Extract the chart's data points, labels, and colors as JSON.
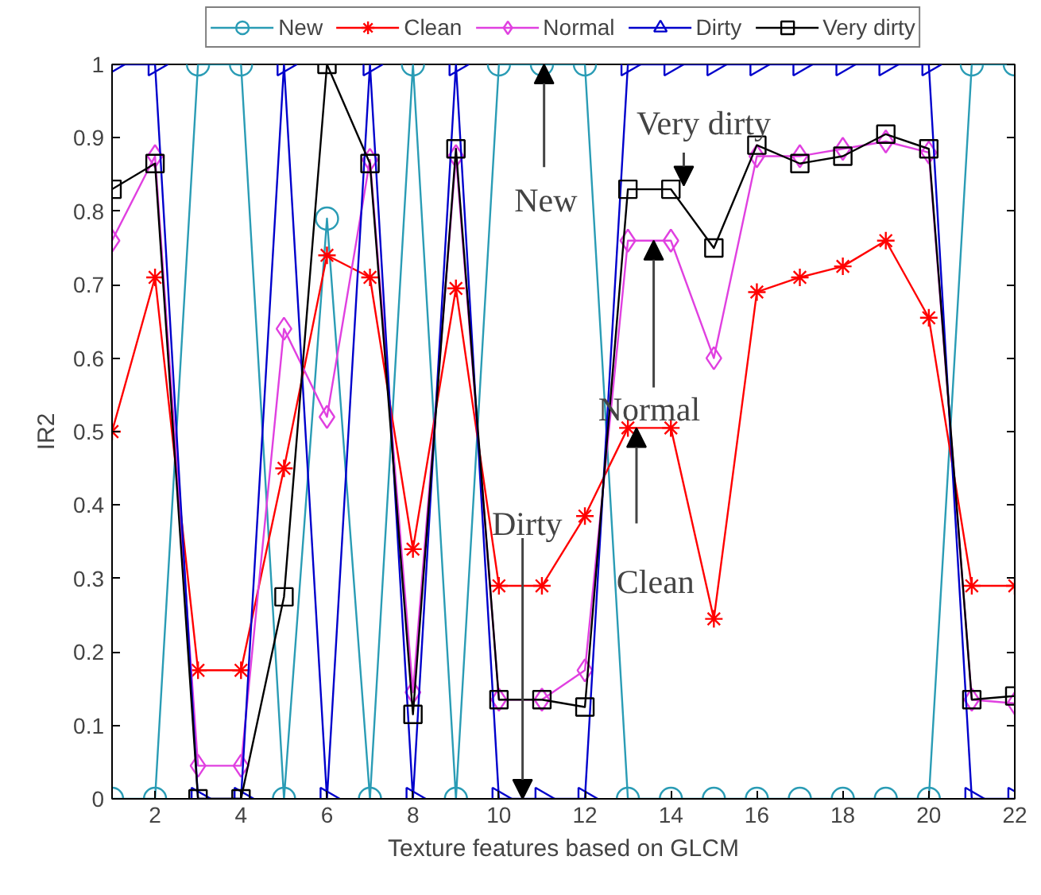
{
  "chart_data": {
    "type": "line",
    "xlabel": "Texture features based on GLCM",
    "ylabel": "IR2",
    "x": [
      1,
      2,
      3,
      4,
      5,
      6,
      7,
      8,
      9,
      10,
      11,
      12,
      13,
      14,
      15,
      16,
      17,
      18,
      19,
      20,
      21,
      22
    ],
    "xlim": [
      1,
      22
    ],
    "xticks": [
      2,
      4,
      6,
      8,
      10,
      12,
      14,
      16,
      18,
      20,
      22
    ],
    "ylim": [
      0,
      1
    ],
    "yticks": [
      0,
      0.1,
      0.2,
      0.3,
      0.4,
      0.5,
      0.6,
      0.7,
      0.8,
      0.9,
      1
    ],
    "grid": false,
    "legend": "top",
    "series": [
      {
        "name": "New",
        "color": "#2a9cb5",
        "marker": "circle",
        "values": [
          0,
          0,
          1,
          1,
          0,
          0.79,
          0,
          1,
          0,
          1,
          1,
          1,
          0,
          0,
          0,
          0,
          0,
          0,
          0,
          0,
          1,
          1
        ]
      },
      {
        "name": "Clean",
        "color": "#ff0000",
        "marker": "cross",
        "values": [
          0.5,
          0.71,
          0.175,
          0.175,
          0.45,
          0.74,
          0.71,
          0.34,
          0.695,
          0.29,
          0.29,
          0.385,
          0.505,
          0.505,
          0.245,
          0.69,
          0.71,
          0.725,
          0.76,
          0.655,
          0.29,
          0.29
        ]
      },
      {
        "name": "Normal",
        "color": "#e040e0",
        "marker": "diamond",
        "values": [
          0.76,
          0.875,
          0.045,
          0.045,
          0.64,
          0.52,
          0.87,
          0.145,
          0.875,
          0.135,
          0.135,
          0.175,
          0.76,
          0.76,
          0.6,
          0.875,
          0.875,
          0.885,
          0.895,
          0.88,
          0.135,
          0.13
        ]
      },
      {
        "name": "Dirty",
        "color": "#0000cc",
        "marker": "triangle",
        "values": [
          1,
          1,
          0,
          0,
          1,
          0,
          1,
          0,
          1,
          0,
          0,
          0,
          1,
          1,
          1,
          1,
          1,
          1,
          1,
          1,
          0,
          0
        ]
      },
      {
        "name": "Very dirty",
        "color": "#000000",
        "marker": "square",
        "values": [
          0.83,
          0.865,
          0,
          0,
          0.275,
          1,
          0.865,
          0.115,
          0.885,
          0.135,
          0.135,
          0.125,
          0.83,
          0.83,
          0.75,
          0.89,
          0.865,
          0.875,
          0.905,
          0.885,
          0.135,
          0.14
        ]
      }
    ],
    "annotations": [
      {
        "text": "New",
        "x": 11.05,
        "y": 1
      },
      {
        "text": "Very dirty",
        "x": 14.3,
        "y": 0.835
      },
      {
        "text": "Normal",
        "x": 13.6,
        "y": 0.76
      },
      {
        "text": "Clean",
        "x": 13.2,
        "y": 0.505
      },
      {
        "text": "Dirty",
        "x": 10.55,
        "y": 0
      }
    ]
  }
}
